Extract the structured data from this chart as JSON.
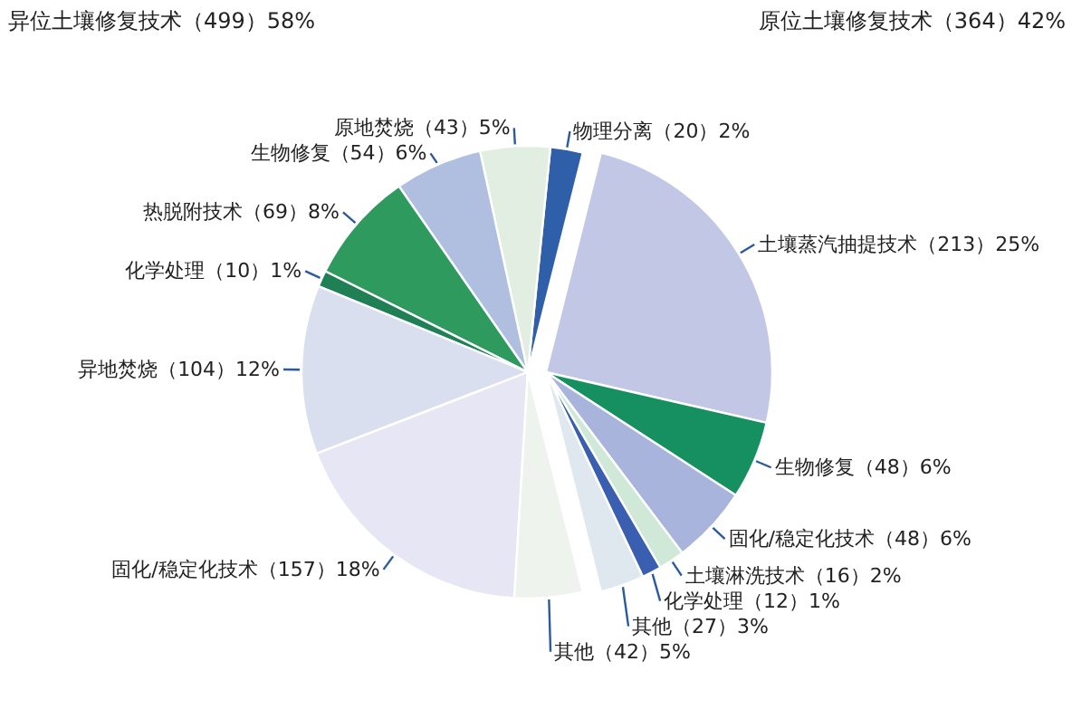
{
  "chart_data": {
    "type": "pie",
    "annotations": [
      "异位土壤修复技术（499）58%",
      "原位土壤修复技术（364）42%"
    ],
    "categories": [
      "物理分离",
      "原地焚烧",
      "生物修复",
      "热脱附技术",
      "化学处理",
      "异地焚烧",
      "固化/稳定化技术",
      "其他",
      "土壤蒸汽抽提技术",
      "生物修复",
      "固化/稳定化技术",
      "土壤淋洗技术",
      "化学处理",
      "其他"
    ],
    "values": [
      20,
      43,
      54,
      69,
      10,
      104,
      157,
      42,
      213,
      48,
      48,
      16,
      12,
      27
    ],
    "colors": [
      "#2e5fa8",
      "#e3eee3",
      "#b0bedf",
      "#2e9a5e",
      "#1f7f55",
      "#d9dfee",
      "#e6e6f4",
      "#eef3ee",
      "#c3c7e6",
      "#169060",
      "#a9b4dc",
      "#cfe8d8",
      "#3a5fb0",
      "#dfe8ee"
    ],
    "value_labels": [
      "（20）2%",
      "（43）5%",
      "（54）6%",
      "（69）8%",
      "（10）1%",
      "（104）12%",
      "（157）18%",
      "（42）5%",
      "（213）25%",
      "（48）6%",
      "（48）6%",
      "（16）2%",
      "（12）1%",
      "（27）3%"
    ]
  }
}
